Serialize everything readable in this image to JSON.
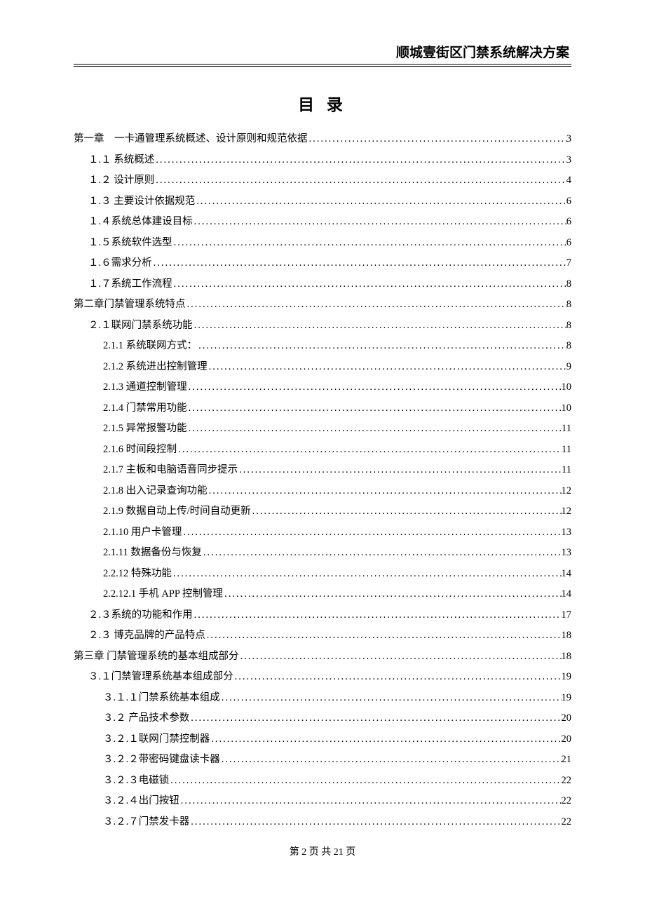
{
  "header": {
    "title": "顺城壹街区门禁系统解决方案"
  },
  "toc_title": "目 录",
  "toc_entries": [
    {
      "level": 0,
      "label": "第一章　一卡通管理系统概述、设计原则和规范依据",
      "page": "3"
    },
    {
      "level": 1,
      "label": "１.１ 系统概述",
      "page": "3"
    },
    {
      "level": 1,
      "label": "１.２ 设计原则",
      "page": "4"
    },
    {
      "level": 1,
      "label": "１.３ 主要设计依据规范",
      "page": "6"
    },
    {
      "level": 1,
      "label": "１.４系统总体建设目标",
      "page": "6"
    },
    {
      "level": 1,
      "label": "１.５系统软件选型",
      "page": "6"
    },
    {
      "level": 1,
      "label": "１.６需求分析",
      "page": "7"
    },
    {
      "level": 1,
      "label": "１.７系统工作流程",
      "page": "8"
    },
    {
      "level": 0,
      "label": "第二章门禁管理系统特点",
      "page": "8"
    },
    {
      "level": 1,
      "label": "２.１联网门禁系统功能",
      "page": "8"
    },
    {
      "level": 2,
      "label": "2.1.1 系统联网方式：",
      "page": "8"
    },
    {
      "level": 2,
      "label": "2.1.2 系统进出控制管理",
      "page": "9"
    },
    {
      "level": 2,
      "label": "2.1.3 通道控制管理",
      "page": "10"
    },
    {
      "level": 2,
      "label": "2.1.4 门禁常用功能",
      "page": "10"
    },
    {
      "level": 2,
      "label": "2.1.5 异常报警功能",
      "page": "11"
    },
    {
      "level": 2,
      "label": "2.1.6 时间段控制",
      "page": "11"
    },
    {
      "level": 2,
      "label": "2.1.7 主板和电脑语音同步提示",
      "page": "11"
    },
    {
      "level": 2,
      "label": "2.1.8 出入记录查询功能",
      "page": "12"
    },
    {
      "level": 2,
      "label": "2.1.9 数据自动上传/时间自动更新",
      "page": "12"
    },
    {
      "level": 2,
      "label": "2.1.10 用户卡管理",
      "page": "13"
    },
    {
      "level": 2,
      "label": "2.1.11 数据备份与恢复",
      "page": "13"
    },
    {
      "level": 2,
      "label": "2.2.12 特殊功能",
      "page": "14"
    },
    {
      "level": 2,
      "label": "2.2.12.1 手机 APP 控制管理",
      "page": "14"
    },
    {
      "level": 1,
      "label": "２.３系统的功能和作用",
      "page": "17"
    },
    {
      "level": 1,
      "label": "２.３ 博克品牌的产品特点",
      "page": "18"
    },
    {
      "level": 0,
      "label": "第三章 门禁管理系统的基本组成部分",
      "page": "18"
    },
    {
      "level": 1,
      "label": "３.１门禁管理系统基本组成部分",
      "page": "19"
    },
    {
      "level": 2,
      "label": "３.１.１门禁系统基本组成",
      "page": "19"
    },
    {
      "level": 2,
      "label": "３.２ 产品技术参数",
      "page": "20"
    },
    {
      "level": 2,
      "label": "３.２.１联网门禁控制器",
      "page": "20"
    },
    {
      "level": 2,
      "label": "３.２.２带密码键盘读卡器",
      "page": "21"
    },
    {
      "level": 2,
      "label": "３.２.３电磁锁",
      "page": "22"
    },
    {
      "level": 2,
      "label": "３.２.４出门按钮",
      "page": "22"
    },
    {
      "level": 2,
      "label": "３.２.７门禁发卡器",
      "page": "22"
    }
  ],
  "footer": {
    "text": "第 2 页 共 21 页"
  },
  "colors": {
    "text": "#000000",
    "background": "#ffffff",
    "line": "#000000"
  },
  "typography": {
    "header_fontsize": 19,
    "toc_title_fontsize": 23,
    "toc_entry_fontsize": 14.5,
    "footer_fontsize": 14
  }
}
